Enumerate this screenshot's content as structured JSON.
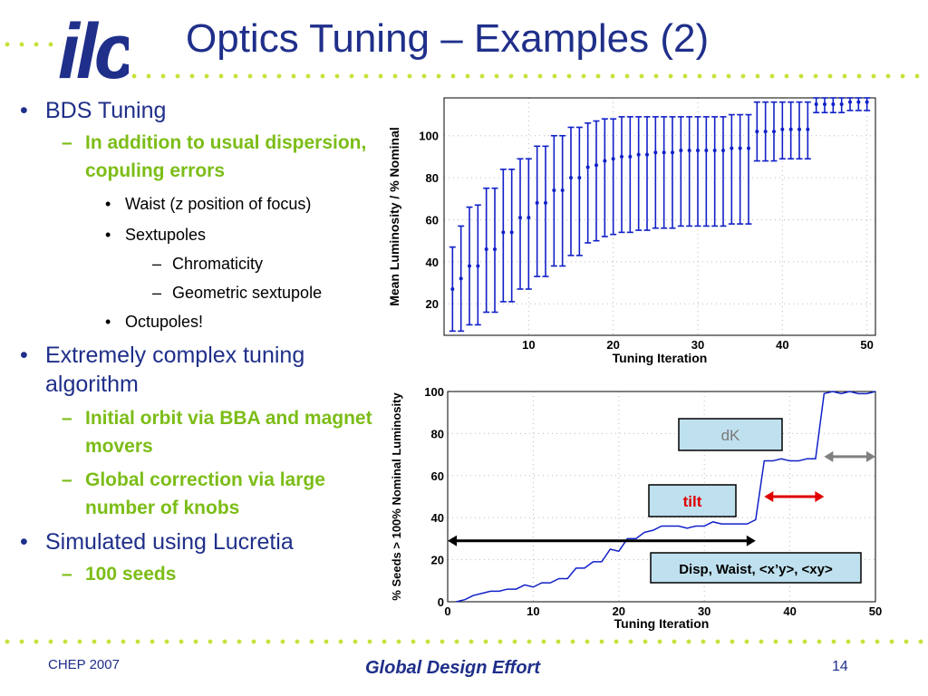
{
  "header": {
    "logo_text": "ilc",
    "title": "Optics Tuning – Examples (2)"
  },
  "bullets": [
    {
      "level": 1,
      "text": "BDS Tuning"
    },
    {
      "level": 2,
      "text": "In addition to usual dispersion, copuling errors"
    },
    {
      "level": 3,
      "text": "Waist (z position of focus)"
    },
    {
      "level": 3,
      "text": "Sextupoles"
    },
    {
      "level": 4,
      "text": "Chromaticity"
    },
    {
      "level": 4,
      "text": "Geometric sextupole"
    },
    {
      "level": 3,
      "text": "Octupoles!"
    },
    {
      "level": 1,
      "text": "Extremely complex tuning algorithm"
    },
    {
      "level": 2,
      "text": "Initial orbit via BBA and magnet movers"
    },
    {
      "level": 2,
      "text": "Global correction via large number of knobs"
    },
    {
      "level": 1,
      "text": "Simulated using Lucretia"
    },
    {
      "level": 2,
      "text": "100 seeds"
    }
  ],
  "footer": {
    "left": "CHEP 2007",
    "center": "Global Design Effort",
    "page": "14"
  },
  "colors": {
    "title_blue": "#1f2f8a",
    "accent_green": "#7cbd17",
    "dot_green": "#c6e23a",
    "plot_blue": "#1020c8",
    "box_fill": "#bfe0ee",
    "tilt_red": "#e00000",
    "gray_arrow": "#808080"
  },
  "chart_data": [
    {
      "type": "scatter",
      "error_bars": true,
      "xlabel": "Tuning Iteration",
      "ylabel": "Mean Luminosity / % Nominal",
      "xlim": [
        0,
        51
      ],
      "ylim": [
        5,
        118
      ],
      "xticks": [
        10,
        20,
        30,
        40,
        50
      ],
      "yticks": [
        20,
        40,
        60,
        80,
        100
      ],
      "grid": true,
      "x": [
        1,
        2,
        3,
        4,
        5,
        6,
        7,
        8,
        9,
        10,
        11,
        12,
        13,
        14,
        15,
        16,
        17,
        18,
        19,
        20,
        21,
        22,
        23,
        24,
        25,
        26,
        27,
        28,
        29,
        30,
        31,
        32,
        33,
        34,
        35,
        36,
        37,
        38,
        39,
        40,
        41,
        42,
        43,
        44,
        45,
        46,
        47,
        48,
        49,
        50
      ],
      "y": [
        27,
        32,
        38,
        38,
        46,
        46,
        54,
        54,
        61,
        61,
        68,
        68,
        74,
        74,
        80,
        80,
        85,
        86,
        88,
        89,
        90,
        90,
        91,
        91,
        92,
        92,
        92,
        93,
        93,
        93,
        93,
        93,
        93,
        94,
        94,
        94,
        102,
        102,
        102,
        103,
        103,
        103,
        103,
        115,
        115,
        115,
        115,
        116,
        116,
        116
      ],
      "y_low": [
        7,
        7,
        10,
        10,
        16,
        16,
        21,
        21,
        27,
        27,
        33,
        33,
        38,
        38,
        43,
        43,
        49,
        50,
        52,
        53,
        54,
        54,
        55,
        55,
        56,
        56,
        56,
        57,
        57,
        57,
        57,
        57,
        57,
        58,
        58,
        58,
        88,
        88,
        88,
        89,
        89,
        89,
        89,
        111,
        111,
        111,
        111,
        112,
        112,
        112
      ],
      "y_high": [
        47,
        57,
        66,
        67,
        75,
        75,
        84,
        84,
        89,
        89,
        95,
        95,
        100,
        100,
        104,
        104,
        106,
        107,
        108,
        108,
        109,
        109,
        109,
        109,
        109,
        109,
        109,
        109,
        109,
        109,
        109,
        109,
        109,
        110,
        110,
        110,
        116,
        116,
        116,
        116,
        116,
        116,
        116,
        118,
        118,
        118,
        118,
        118,
        118,
        118
      ]
    },
    {
      "type": "line",
      "xlabel": "Tuning Iteration",
      "ylabel": "% Seeds > 100% Nominal Luminosity",
      "xlim": [
        0,
        50
      ],
      "ylim": [
        0,
        100
      ],
      "xticks": [
        0,
        10,
        20,
        30,
        40,
        50
      ],
      "yticks": [
        0,
        20,
        40,
        60,
        80,
        100
      ],
      "grid": true,
      "x": [
        1,
        2,
        3,
        4,
        5,
        6,
        7,
        8,
        9,
        10,
        11,
        12,
        13,
        14,
        15,
        16,
        17,
        18,
        19,
        20,
        21,
        22,
        23,
        24,
        25,
        26,
        27,
        28,
        29,
        30,
        31,
        32,
        33,
        34,
        35,
        36,
        37,
        38,
        39,
        40,
        41,
        42,
        43,
        44,
        45,
        46,
        47,
        48,
        49,
        50
      ],
      "y": [
        0,
        1,
        3,
        4,
        5,
        5,
        6,
        6,
        8,
        7,
        9,
        9,
        11,
        11,
        16,
        16,
        19,
        19,
        25,
        24,
        30,
        30,
        33,
        34,
        36,
        36,
        36,
        35,
        36,
        36,
        38,
        37,
        37,
        37,
        37,
        39,
        67,
        67,
        68,
        67,
        67,
        68,
        68,
        99,
        100,
        99,
        100,
        99,
        99,
        100
      ],
      "annotations": {
        "dk": "dK",
        "tilt": "tilt",
        "disp": "Disp, Waist, <x’y>, <xy>"
      }
    }
  ]
}
